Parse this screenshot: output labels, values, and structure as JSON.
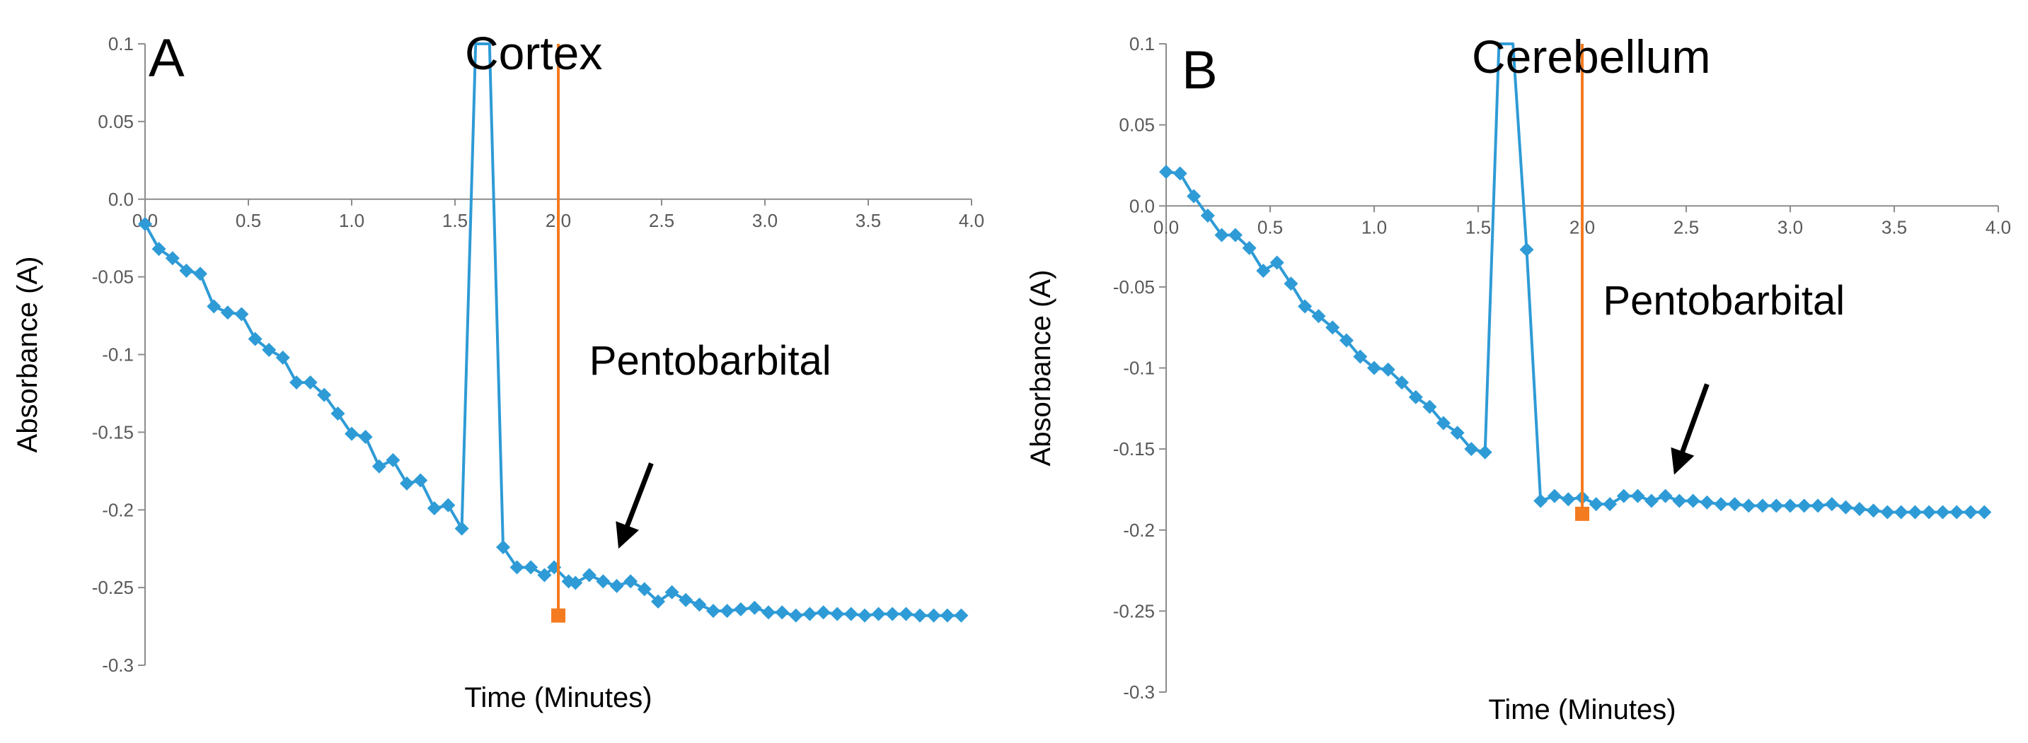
{
  "chart_data": [
    {
      "type": "line",
      "panel_letter": "A",
      "title": "Cortex",
      "xlabel": "Time (Minutes)",
      "ylabel": "Absorbance (A)",
      "xlim": [
        0,
        4
      ],
      "ylim": [
        -0.3,
        0.1
      ],
      "x_ticks": [
        0,
        0.5,
        1,
        1.5,
        2,
        2.5,
        3,
        3.5,
        4
      ],
      "x_tick_labels": [
        "0.0",
        "0.5",
        "1.0",
        "1.5",
        "2.0",
        "2.5",
        "3.0",
        "3.5",
        "4.0"
      ],
      "y_ticks": [
        0.1,
        0.05,
        0,
        -0.05,
        -0.1,
        -0.15,
        -0.2,
        -0.25,
        -0.3
      ],
      "y_tick_labels": [
        "0.1",
        "0.05",
        "0.0",
        "-0.05",
        "-0.1",
        "-0.15",
        "-0.2",
        "-0.25",
        "-0.3"
      ],
      "grid": false,
      "series": [
        {
          "name": "Absorbance",
          "color": "#2e9bd6",
          "marker": "diamond",
          "x": [
            0,
            0.067,
            0.133,
            0.2,
            0.267,
            0.333,
            0.4,
            0.467,
            0.533,
            0.6,
            0.667,
            0.733,
            0.8,
            0.867,
            0.933,
            1.0,
            1.067,
            1.133,
            1.2,
            1.267,
            1.333,
            1.4,
            1.467,
            1.533,
            1.6,
            1.667,
            1.733,
            1.8,
            1.867,
            1.933,
            1.98,
            2.05,
            2.083,
            2.15,
            2.217,
            2.283,
            2.35,
            2.417,
            2.483,
            2.55,
            2.617,
            2.683,
            2.75,
            2.817,
            2.883,
            2.95,
            3.017,
            3.083,
            3.15,
            3.217,
            3.283,
            3.35,
            3.417,
            3.483,
            3.55,
            3.617,
            3.683,
            3.75,
            3.817,
            3.883,
            3.95
          ],
          "y": [
            -0.016,
            -0.032,
            -0.038,
            -0.046,
            -0.048,
            -0.069,
            -0.073,
            -0.074,
            -0.09,
            -0.097,
            -0.102,
            -0.118,
            -0.118,
            -0.126,
            -0.138,
            -0.151,
            -0.153,
            -0.172,
            -0.168,
            -0.183,
            -0.181,
            -0.199,
            -0.197,
            -0.212,
            0.12,
            0.12,
            -0.224,
            -0.237,
            -0.237,
            -0.242,
            -0.237,
            -0.246,
            -0.247,
            -0.242,
            -0.246,
            -0.249,
            -0.246,
            -0.251,
            -0.259,
            -0.253,
            -0.258,
            -0.261,
            -0.265,
            -0.265,
            -0.264,
            -0.263,
            -0.266,
            -0.266,
            -0.268,
            -0.267,
            -0.266,
            -0.267,
            -0.267,
            -0.268,
            -0.267,
            -0.267,
            -0.267,
            -0.268,
            -0.268,
            -0.268,
            -0.268
          ],
          "marker_skip": [
            24,
            25
          ]
        },
        {
          "name": "Pentobarbital injection",
          "color": "#f47b20",
          "marker": "square",
          "x": [
            2.0,
            2.0
          ],
          "y": [
            0.12,
            -0.268
          ],
          "marker_index": [
            1
          ]
        }
      ],
      "annotations": [
        {
          "text": "Pentobarbital",
          "text_x": 2.15,
          "text_y": -0.113,
          "arrow_from": [
            2.45,
            -0.17
          ],
          "arrow_to": [
            2.3,
            -0.222
          ]
        }
      ]
    },
    {
      "type": "line",
      "panel_letter": "B",
      "title": "Cerebellum",
      "xlabel": "Time (Minutes)",
      "ylabel": "Absorbance (A)",
      "xlim": [
        0,
        4
      ],
      "ylim": [
        -0.3,
        0.1
      ],
      "x_ticks": [
        0,
        0.5,
        1,
        1.5,
        2,
        2.5,
        3,
        3.5,
        4
      ],
      "x_tick_labels": [
        "0.0",
        "0.5",
        "1.0",
        "1.5",
        "2.0",
        "2.5",
        "3.0",
        "3.5",
        "4.0"
      ],
      "y_ticks": [
        0.1,
        0.05,
        0,
        -0.05,
        -0.1,
        -0.15,
        -0.2,
        -0.25,
        -0.3
      ],
      "y_tick_labels": [
        "0.1",
        "0.05",
        "0.0",
        "-0.05",
        "-0.1",
        "-0.15",
        "-0.2",
        "-0.25",
        "-0.3"
      ],
      "grid": false,
      "series": [
        {
          "name": "Absorbance",
          "color": "#2e9bd6",
          "marker": "diamond",
          "x": [
            0,
            0.067,
            0.133,
            0.2,
            0.267,
            0.333,
            0.4,
            0.467,
            0.533,
            0.6,
            0.667,
            0.733,
            0.8,
            0.867,
            0.933,
            1.0,
            1.067,
            1.133,
            1.2,
            1.267,
            1.333,
            1.4,
            1.467,
            1.533,
            1.6,
            1.667,
            1.733,
            1.8,
            1.867,
            1.933,
            2.0,
            2.067,
            2.133,
            2.2,
            2.267,
            2.333,
            2.4,
            2.467,
            2.533,
            2.6,
            2.667,
            2.733,
            2.8,
            2.867,
            2.933,
            3.0,
            3.067,
            3.133,
            3.2,
            3.267,
            3.333,
            3.4,
            3.467,
            3.533,
            3.6,
            3.667,
            3.733,
            3.8,
            3.867,
            3.933
          ],
          "y": [
            0.021,
            0.02,
            0.006,
            -0.006,
            -0.018,
            -0.018,
            -0.026,
            -0.04,
            -0.035,
            -0.048,
            -0.062,
            -0.068,
            -0.075,
            -0.083,
            -0.093,
            -0.1,
            -0.101,
            -0.109,
            -0.118,
            -0.124,
            -0.134,
            -0.14,
            -0.15,
            -0.152,
            0.12,
            0.12,
            -0.027,
            -0.182,
            -0.179,
            -0.181,
            -0.18,
            -0.184,
            -0.184,
            -0.179,
            -0.179,
            -0.182,
            -0.179,
            -0.182,
            -0.182,
            -0.183,
            -0.184,
            -0.184,
            -0.185,
            -0.185,
            -0.185,
            -0.185,
            -0.185,
            -0.185,
            -0.184,
            -0.186,
            -0.187,
            -0.188,
            -0.189,
            -0.189,
            -0.189,
            -0.189,
            -0.189,
            -0.189,
            -0.189,
            -0.189
          ],
          "marker_skip": [
            24,
            25
          ]
        },
        {
          "name": "Pentobarbital injection",
          "color": "#f47b20",
          "marker": "square",
          "x": [
            2.0,
            2.0
          ],
          "y": [
            0.12,
            -0.19
          ],
          "marker_index": [
            1
          ]
        }
      ],
      "annotations": [
        {
          "text": "Pentobarbital",
          "text_x": 2.1,
          "text_y": -0.067,
          "arrow_from": [
            2.6,
            -0.11
          ],
          "arrow_to": [
            2.45,
            -0.163
          ]
        }
      ]
    }
  ]
}
